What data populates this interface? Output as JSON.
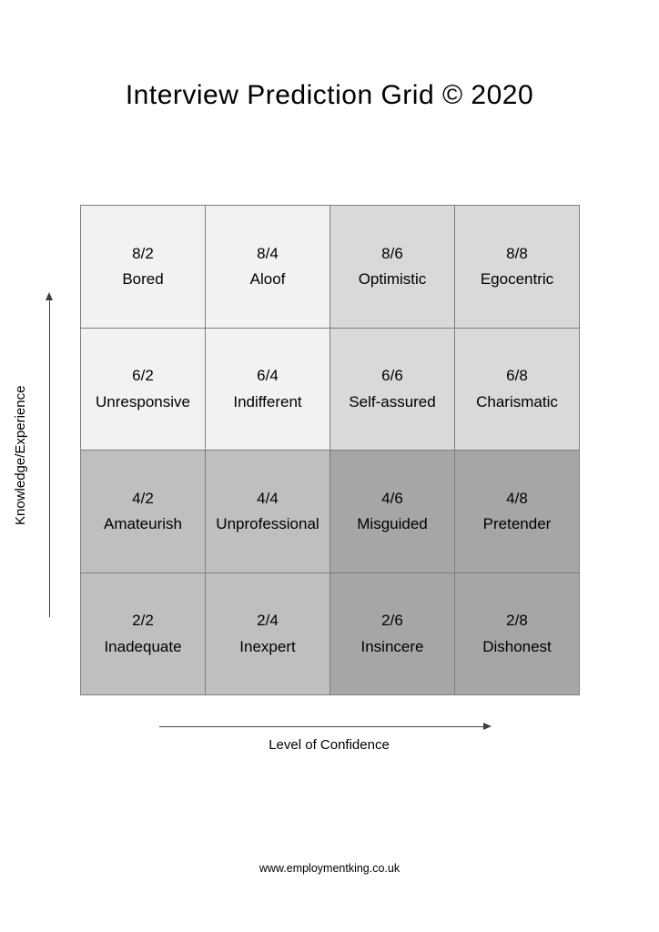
{
  "title": "Interview Prediction Grid © 2020",
  "axes": {
    "y_label": "Knowledge/Experience",
    "x_label": "Level of Confidence"
  },
  "footer": "www.employmentking.co.uk",
  "colors": {
    "light": "#f2f2f2",
    "medium_light": "#d9d9d9",
    "medium": "#bfbfbf",
    "dark": "#a6a6a6",
    "grid_line": "#7f7f7f",
    "arrow": "#3f3f3f",
    "text": "#000000"
  },
  "grid": {
    "rows": [
      {
        "cells": [
          {
            "score": "8/2",
            "label": "Bored",
            "tone": "light"
          },
          {
            "score": "8/4",
            "label": "Aloof",
            "tone": "light"
          },
          {
            "score": "8/6",
            "label": "Optimistic",
            "tone": "medium_light"
          },
          {
            "score": "8/8",
            "label": "Egocentric",
            "tone": "medium_light"
          }
        ]
      },
      {
        "cells": [
          {
            "score": "6/2",
            "label": "Unresponsive",
            "tone": "light"
          },
          {
            "score": "6/4",
            "label": "Indifferent",
            "tone": "light"
          },
          {
            "score": "6/6",
            "label": "Self-assured",
            "tone": "medium_light"
          },
          {
            "score": "6/8",
            "label": "Charismatic",
            "tone": "medium_light"
          }
        ]
      },
      {
        "cells": [
          {
            "score": "4/2",
            "label": "Amateurish",
            "tone": "medium"
          },
          {
            "score": "4/4",
            "label": "Unprofessional",
            "tone": "medium"
          },
          {
            "score": "4/6",
            "label": "Misguided",
            "tone": "dark"
          },
          {
            "score": "4/8",
            "label": "Pretender",
            "tone": "dark"
          }
        ]
      },
      {
        "cells": [
          {
            "score": "2/2",
            "label": "Inadequate",
            "tone": "medium"
          },
          {
            "score": "2/4",
            "label": "Inexpert",
            "tone": "medium"
          },
          {
            "score": "2/6",
            "label": "Insincere",
            "tone": "dark"
          },
          {
            "score": "2/8",
            "label": "Dishonest",
            "tone": "dark"
          }
        ]
      }
    ]
  }
}
